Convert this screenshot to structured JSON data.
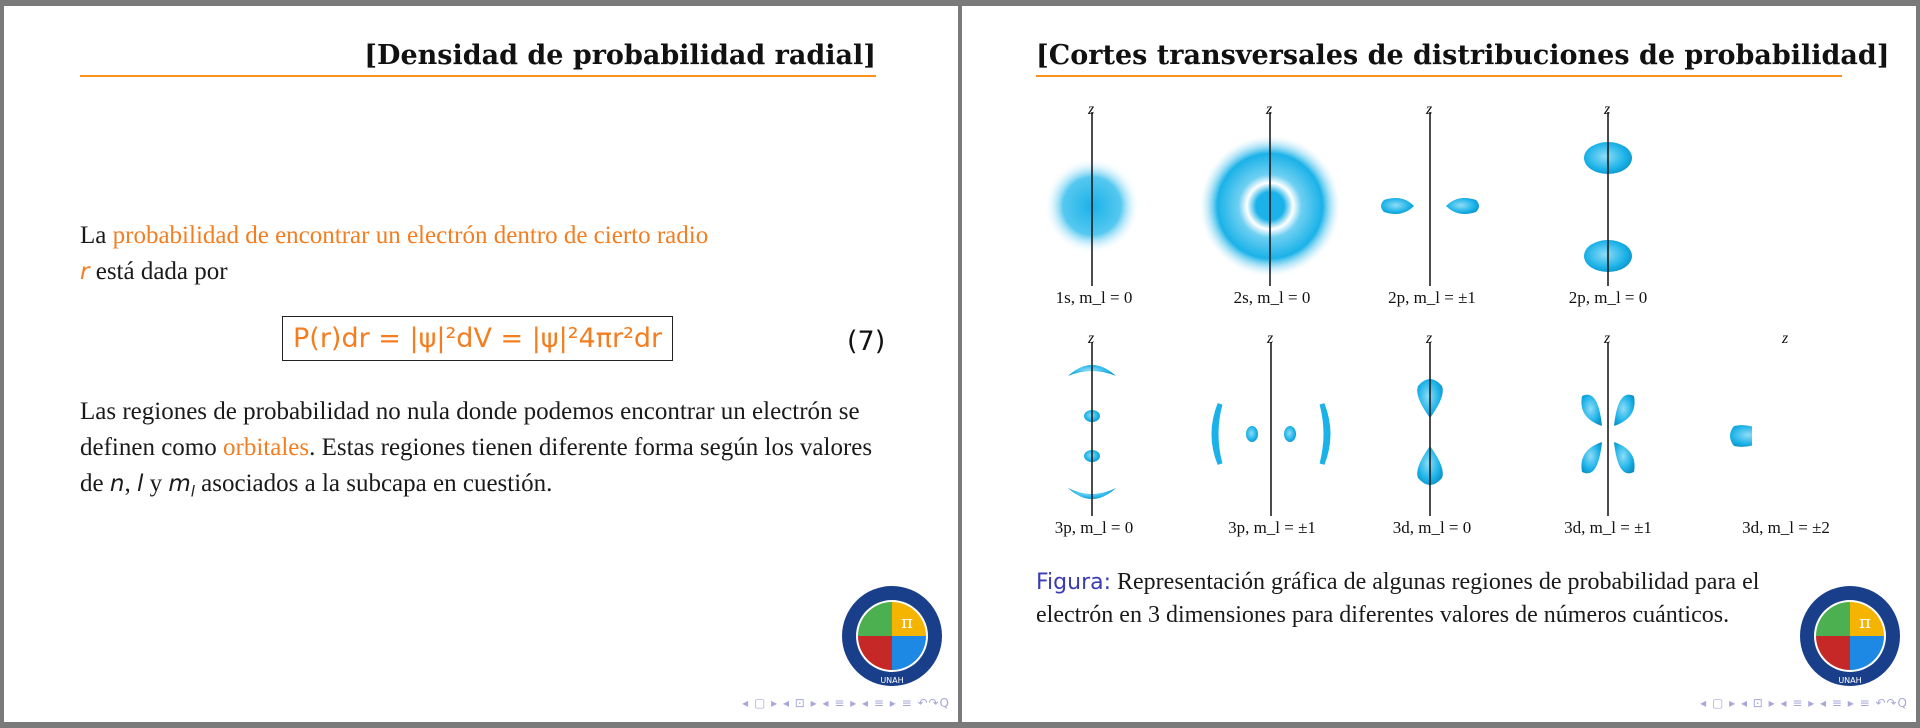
{
  "left_slide": {
    "title": "[Densidad de probabilidad radial]",
    "paragraph1": {
      "lead": "La ",
      "highlight": "probabilidad de encontrar un electrón dentro de cierto radio",
      "var": "r",
      "tail": " está dada por"
    },
    "equation": {
      "text": "P(r)dr = |ψ|²dV = |ψ|²4πr²dr",
      "number": "(7)"
    },
    "paragraph2": {
      "part1": "Las regiones de probabilidad no nula donde podemos encontrar un electrón se definen como ",
      "highlight": "orbitales",
      "part2": ". Estas regiones tienen diferente forma según los valores de ",
      "n": "n",
      "sep1": ", ",
      "l": "l",
      "sep2": " y ",
      "ml": "m",
      "ml_sub": "l",
      "part3": " asociados a la subcapa en cuestión."
    },
    "logo_text": "FACULTAD DE CIENCIAS · UNAH",
    "nav": "◂ ▢ ▸ ◂ ⊡ ▸ ◂ ≡ ▸ ◂ ≡ ▸   ≡   ↶↷Q"
  },
  "right_slide": {
    "title": "[Cortes transversales de distribuciones de probabilidad]",
    "axis_label": "z",
    "orbitals_row1": [
      {
        "label": "1s, m_l = 0",
        "shape": "sphere"
      },
      {
        "label": "2s, m_l = 0",
        "shape": "ring"
      },
      {
        "label": "2p, m_l = ±1",
        "shape": "horizontal-lobes"
      },
      {
        "label": "2p, m_l = 0",
        "shape": "vertical-lobes"
      }
    ],
    "orbitals_row2": [
      {
        "label": "3p, m_l = 0",
        "shape": "3p0"
      },
      {
        "label": "3p, m_l = ±1",
        "shape": "3p1"
      },
      {
        "label": "3d, m_l = 0",
        "shape": "3d0"
      },
      {
        "label": "3d, m_l = ±1",
        "shape": "3d1"
      },
      {
        "label": "3d, m_l = ±2",
        "shape": "3d2"
      }
    ],
    "caption_label": "Figura:",
    "caption_text": " Representación gráfica de algunas regiones de probabilidad para el electrón en 3 dimensiones para diferentes valores de números cuánticos.",
    "logo_text": "FACULTAD DE CIENCIAS · UNAH",
    "nav": "◂ ▢ ▸ ◂ ⊡ ▸ ◂ ≡ ▸ ◂ ≡ ▸   ≡   ↶↷Q"
  },
  "colors": {
    "accent": "#f47d20",
    "orbital": "#1ab2e8",
    "caption_label": "#3b3bb3"
  }
}
